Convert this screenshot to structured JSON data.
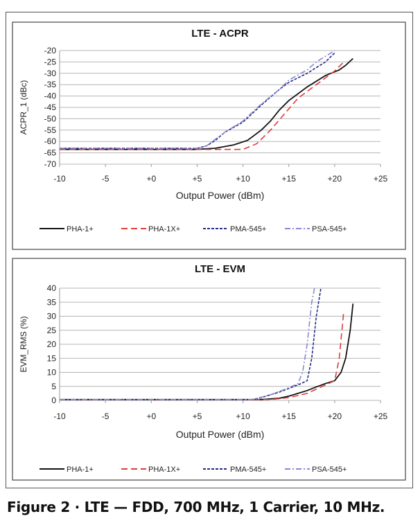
{
  "caption": "Figure 2  ·  LTE — FDD, 700 MHz, 1 Carrier, 10 MHz.",
  "colors": {
    "PHA-1+": "#111111",
    "PHA-1X+": "#e03a3a",
    "PMA-545+": "#1f2a80",
    "PSA-545+": "#8a86d0"
  },
  "chart_data": [
    {
      "type": "line",
      "title": "LTE - ACPR",
      "xlabel": "Output Power (dBm)",
      "ylabel": "ACPR_1 (dBc)",
      "xlim": [
        -10,
        25
      ],
      "ylim": [
        -70,
        -20
      ],
      "xticks": [
        "-10",
        "-5",
        "+0",
        "+5",
        "+10",
        "+15",
        "+20",
        "+25"
      ],
      "yticks": [
        "-20",
        "-25",
        "-30",
        "-35",
        "-40",
        "-45",
        "-50",
        "-55",
        "-60",
        "-65",
        "-70"
      ],
      "grid": true,
      "legend": "bottom",
      "series": [
        {
          "name": "PHA-1+",
          "x": [
            -10,
            5,
            7,
            9,
            10.5,
            12,
            13,
            14,
            15,
            17,
            19,
            20.5,
            21.2,
            22
          ],
          "y": [
            -63.5,
            -63.5,
            -63,
            -61.5,
            -59.5,
            -55,
            -51,
            -46,
            -42,
            -36,
            -31,
            -28.5,
            -26.5,
            -23.5
          ]
        },
        {
          "name": "PHA-1X+",
          "x": [
            -10,
            10,
            11.5,
            13,
            14.5,
            16,
            18,
            20,
            21
          ],
          "y": [
            -63.5,
            -63.5,
            -61,
            -55,
            -48,
            -41,
            -35,
            -29,
            -25
          ]
        },
        {
          "name": "PMA-545+",
          "x": [
            -10,
            5,
            6,
            7,
            8,
            10,
            12,
            14,
            15,
            17,
            19,
            20
          ],
          "y": [
            -63,
            -63,
            -62,
            -59.5,
            -56,
            -51.5,
            -44,
            -37,
            -34,
            -30,
            -25,
            -21
          ]
        },
        {
          "name": "PSA-545+",
          "x": [
            -10,
            5,
            6,
            7,
            8,
            10,
            12,
            14,
            15,
            17,
            18,
            20
          ],
          "y": [
            -63,
            -63,
            -62,
            -59,
            -56,
            -51,
            -43.5,
            -37,
            -33,
            -28.5,
            -25,
            -20
          ]
        }
      ]
    },
    {
      "type": "line",
      "title": "LTE - EVM",
      "xlabel": "Output Power (dBm)",
      "ylabel": "EVM_RMS (%)",
      "xlim": [
        -10,
        25
      ],
      "ylim": [
        0,
        40
      ],
      "xticks": [
        "-10",
        "-5",
        "+0",
        "+5",
        "+10",
        "+15",
        "+20",
        "+25"
      ],
      "yticks": [
        "40",
        "35",
        "30",
        "25",
        "20",
        "15",
        "10",
        "5",
        "0"
      ],
      "grid": true,
      "legend": "bottom",
      "series": [
        {
          "name": "PHA-1+",
          "x": [
            -10,
            12,
            14,
            15,
            16,
            17,
            18,
            19,
            20,
            20.7,
            21.2,
            21.7,
            22
          ],
          "y": [
            0.3,
            0.3,
            0.8,
            1.5,
            2.5,
            3.5,
            4.8,
            6,
            7,
            10,
            15,
            25,
            34.5
          ]
        },
        {
          "name": "PHA-1X+",
          "x": [
            -10,
            13,
            15,
            17,
            19,
            20,
            20.5,
            21
          ],
          "y": [
            0.3,
            0.3,
            1,
            2.5,
            5.5,
            7,
            15,
            32
          ]
        },
        {
          "name": "PMA-545+",
          "x": [
            -10,
            11,
            12,
            14,
            16,
            17,
            17.5,
            18,
            18.5
          ],
          "y": [
            0.3,
            0.3,
            1,
            3,
            5.5,
            7,
            15,
            30,
            40
          ]
        },
        {
          "name": "PSA-545+",
          "x": [
            -10,
            11,
            13,
            15,
            16,
            16.5,
            17,
            17.5,
            17.8
          ],
          "y": [
            0.3,
            0.3,
            2,
            4.5,
            6,
            10,
            20,
            35,
            40
          ]
        }
      ]
    }
  ]
}
